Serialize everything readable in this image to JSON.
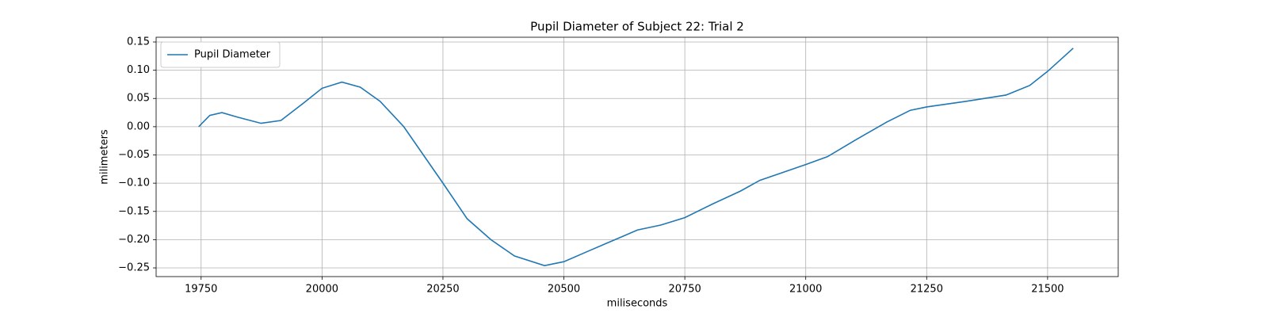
{
  "chart_data": {
    "type": "line",
    "title": "Pupil Diameter of Subject 22: Trial 2",
    "xlabel": "miliseconds",
    "ylabel": "milimeters",
    "x": [
      19745,
      19768,
      19793,
      19825,
      19874,
      19915,
      19956,
      20000,
      20041,
      20079,
      20120,
      20169,
      20250,
      20300,
      20349,
      20398,
      20460,
      20500,
      20554,
      20603,
      20652,
      20701,
      20750,
      20807,
      20865,
      20905,
      21000,
      21045,
      21102,
      21167,
      21216,
      21250,
      21332,
      21414,
      21463,
      21500,
      21553
    ],
    "series": [
      {
        "name": "Pupil Diameter",
        "color": "#1f77b4",
        "values": [
          0.0,
          0.02,
          0.025,
          0.017,
          0.006,
          0.011,
          0.038,
          0.068,
          0.079,
          0.07,
          0.045,
          0.0,
          -0.1,
          -0.163,
          -0.2,
          -0.229,
          -0.246,
          -0.239,
          -0.219,
          -0.201,
          -0.183,
          -0.174,
          -0.161,
          -0.137,
          -0.114,
          -0.095,
          -0.067,
          -0.053,
          -0.024,
          0.008,
          0.029,
          0.035,
          0.045,
          0.056,
          0.073,
          0.098,
          0.139
        ]
      }
    ],
    "xlim": [
      19657,
      21646
    ],
    "ylim": [
      -0.2654,
      0.1584
    ],
    "xticks": [
      19750,
      20000,
      20250,
      20500,
      20750,
      21000,
      21250,
      21500
    ],
    "yticks": [
      {
        "value": 0.15,
        "label": "0.15"
      },
      {
        "value": 0.1,
        "label": "0.10"
      },
      {
        "value": 0.05,
        "label": "0.05"
      },
      {
        "value": 0,
        "label": "0.00"
      },
      {
        "value": -0.05,
        "label": "−0.05"
      },
      {
        "value": -0.1,
        "label": "−0.10"
      },
      {
        "value": -0.15,
        "label": "−0.15"
      },
      {
        "value": -0.2,
        "label": "−0.20"
      },
      {
        "value": -0.25,
        "label": "−0.25"
      }
    ],
    "grid": true,
    "legend": "upper left"
  }
}
